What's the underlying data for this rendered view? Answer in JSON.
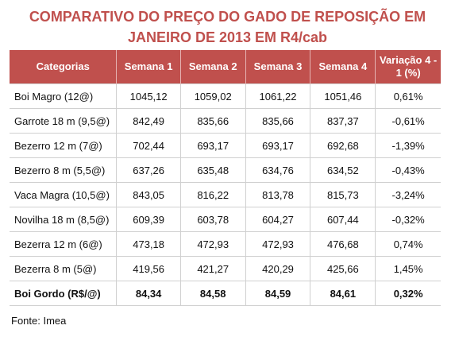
{
  "title": [
    "COMPARATIVO DO PREÇO DO GADO DE REPOSIÇÃO EM",
    "JANEIRO DE 2013 EM R4/cab"
  ],
  "table": {
    "header": [
      "Categorias",
      "Semana 1",
      "Semana 2",
      "Semana 3",
      "Semana 4",
      "Variação 4 - 1 (%)"
    ],
    "rows": [
      [
        "Boi Magro (12@)",
        "1045,12",
        "1059,02",
        "1061,22",
        "1051,46",
        "0,61%"
      ],
      [
        "Garrote 18 m (9,5@)",
        "842,49",
        "835,66",
        "835,66",
        "837,37",
        "-0,61%"
      ],
      [
        "Bezerro 12 m (7@)",
        "702,44",
        "693,17",
        "693,17",
        "692,68",
        "-1,39%"
      ],
      [
        "Bezerro 8 m (5,5@)",
        "637,26",
        "635,48",
        "634,76",
        "634,52",
        "-0,43%"
      ],
      [
        "Vaca Magra (10,5@)",
        "843,05",
        "816,22",
        "813,78",
        "815,73",
        "-3,24%"
      ],
      [
        "Novilha 18 m (8,5@)",
        "609,39",
        "603,78",
        "604,27",
        "607,44",
        "-0,32%"
      ],
      [
        "Bezerra 12 m (6@)",
        "473,18",
        "472,93",
        "472,93",
        "476,68",
        "0,74%"
      ],
      [
        "Bezerra 8 m (5@)",
        "419,56",
        "421,27",
        "420,29",
        "425,66",
        "1,45%"
      ],
      [
        "Boi Gordo (R$/@)",
        "84,34",
        "84,58",
        "84,59",
        "84,61",
        "0,32%"
      ]
    ]
  },
  "source": "Fonte: Imea"
}
